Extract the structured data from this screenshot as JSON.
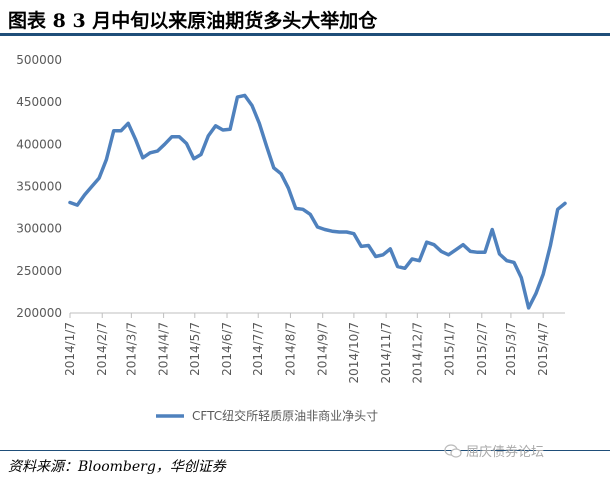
{
  "title": "图表 8    3 月中旬以来原油期货多头大举加仓",
  "source": "资料来源：Bloomberg，华创证券",
  "watermark": "屈庆债券论坛",
  "colors": {
    "line": "#4f81bd",
    "axis": "#bfbfbf",
    "text": "#595959",
    "rule": "#1f4e79"
  },
  "chart_data": {
    "type": "line",
    "ylim": [
      200000,
      500000
    ],
    "yticks": [
      200000,
      250000,
      300000,
      350000,
      400000,
      450000,
      500000
    ],
    "ytick_labels": [
      "200000",
      "250000",
      "300000",
      "350000",
      "400000",
      "450000",
      "500000"
    ],
    "x_start": "2014/1/7",
    "x_end": "2015/4/28",
    "xtick_labels": [
      "2014/1/7",
      "2014/2/7",
      "2014/3/7",
      "2014/4/7",
      "2014/5/7",
      "2014/6/7",
      "2014/7/7",
      "2014/8/7",
      "2014/9/7",
      "2014/10/7",
      "2014/11/7",
      "2014/12/7",
      "2015/1/7",
      "2015/2/7",
      "2015/3/7",
      "2015/4/7"
    ],
    "grid": false,
    "legend_position": "bottom",
    "series": [
      {
        "name": "CFTC纽交所轻质原油非商业净头寸",
        "x": [
          "2014/1/7",
          "2014/1/14",
          "2014/1/21",
          "2014/1/28",
          "2014/2/4",
          "2014/2/11",
          "2014/2/18",
          "2014/2/25",
          "2014/3/4",
          "2014/3/11",
          "2014/3/18",
          "2014/3/25",
          "2014/4/1",
          "2014/4/8",
          "2014/4/15",
          "2014/4/22",
          "2014/4/29",
          "2014/5/6",
          "2014/5/13",
          "2014/5/20",
          "2014/5/27",
          "2014/6/3",
          "2014/6/10",
          "2014/6/17",
          "2014/6/24",
          "2014/7/1",
          "2014/7/8",
          "2014/7/15",
          "2014/7/22",
          "2014/7/29",
          "2014/8/5",
          "2014/8/12",
          "2014/8/19",
          "2014/8/26",
          "2014/9/2",
          "2014/9/9",
          "2014/9/16",
          "2014/9/23",
          "2014/9/30",
          "2014/10/7",
          "2014/10/14",
          "2014/10/21",
          "2014/10/28",
          "2014/11/4",
          "2014/11/11",
          "2014/11/18",
          "2014/11/25",
          "2014/12/2",
          "2014/12/9",
          "2014/12/16",
          "2014/12/23",
          "2014/12/30",
          "2015/1/6",
          "2015/1/13",
          "2015/1/20",
          "2015/1/27",
          "2015/2/3",
          "2015/2/10",
          "2015/2/17",
          "2015/2/24",
          "2015/3/3",
          "2015/3/10",
          "2015/3/17",
          "2015/3/24",
          "2015/3/31",
          "2015/4/7",
          "2015/4/14",
          "2015/4/21",
          "2015/4/28"
        ],
        "values": [
          331000,
          328000,
          340000,
          350000,
          360000,
          382000,
          416000,
          416000,
          425000,
          406000,
          384000,
          390000,
          392000,
          400000,
          409000,
          409000,
          401000,
          383000,
          388000,
          410000,
          422000,
          417000,
          418000,
          456000,
          458000,
          446000,
          425000,
          398000,
          372000,
          365000,
          348000,
          324000,
          323000,
          317000,
          302000,
          299000,
          297000,
          296000,
          296000,
          294000,
          279000,
          280000,
          267000,
          269000,
          276000,
          255000,
          253000,
          264000,
          262000,
          284000,
          281000,
          273000,
          269000,
          275000,
          281000,
          273000,
          272000,
          272000,
          299000,
          270000,
          262000,
          260000,
          242000,
          206000,
          223000,
          246000,
          280000,
          323000,
          330000
        ]
      }
    ]
  }
}
